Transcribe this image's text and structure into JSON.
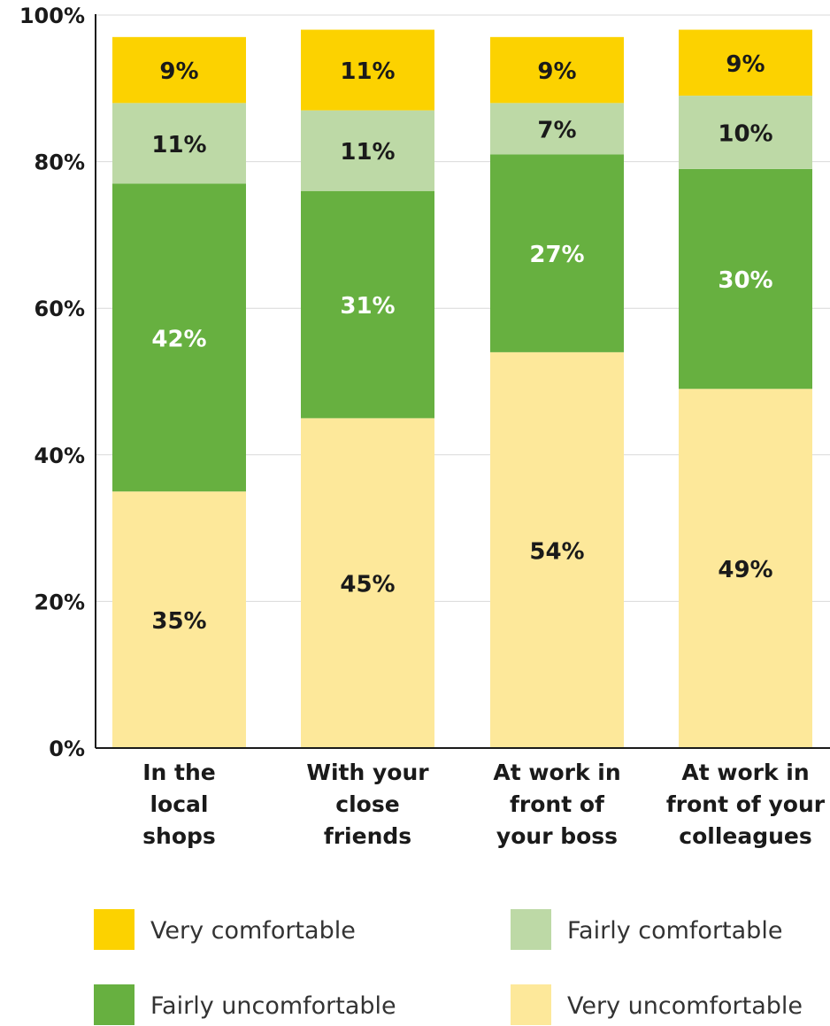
{
  "chart_data": {
    "type": "bar",
    "stacked": true,
    "categories": [
      [
        "In the",
        "local",
        "shops"
      ],
      [
        "With your",
        "close",
        "friends"
      ],
      [
        "At work in",
        "front of",
        "your boss"
      ],
      [
        "At work in",
        "front of your",
        "colleagues"
      ]
    ],
    "series": [
      {
        "name": "Very uncomfortable",
        "color": "#fde89a",
        "label_color": "#1a1a1a",
        "values": [
          35,
          45,
          54,
          49
        ]
      },
      {
        "name": "Fairly uncomfortable",
        "color": "#67b040",
        "label_color": "#ffffff",
        "values": [
          42,
          31,
          27,
          30
        ]
      },
      {
        "name": "Fairly comfortable",
        "color": "#bdd9a6",
        "label_color": "#1a1a1a",
        "values": [
          11,
          11,
          7,
          10
        ]
      },
      {
        "name": "Very comfortable",
        "color": "#fcd200",
        "label_color": "#1a1a1a",
        "values": [
          9,
          11,
          9,
          9
        ]
      }
    ],
    "value_labels": [
      [
        "35%",
        "42%",
        "11%",
        "9%"
      ],
      [
        "45%",
        "31%",
        "11%",
        "11%"
      ],
      [
        "54%",
        "27%",
        "7%",
        "9%"
      ],
      [
        "49%",
        "30%",
        "10%",
        "9%"
      ]
    ],
    "y_ticks": [
      "0%",
      "20%",
      "40%",
      "60%",
      "80%",
      "100%"
    ],
    "ylim": [
      0,
      100
    ],
    "grid": true,
    "legend": {
      "placement": "bottom",
      "items": [
        {
          "label": "Very comfortable",
          "color": "#fcd200"
        },
        {
          "label": "Fairly comfortable",
          "color": "#bdd9a6"
        },
        {
          "label": "Fairly uncomfortable",
          "color": "#67b040"
        },
        {
          "label": "Very uncomfortable",
          "color": "#fde89a"
        }
      ]
    }
  }
}
